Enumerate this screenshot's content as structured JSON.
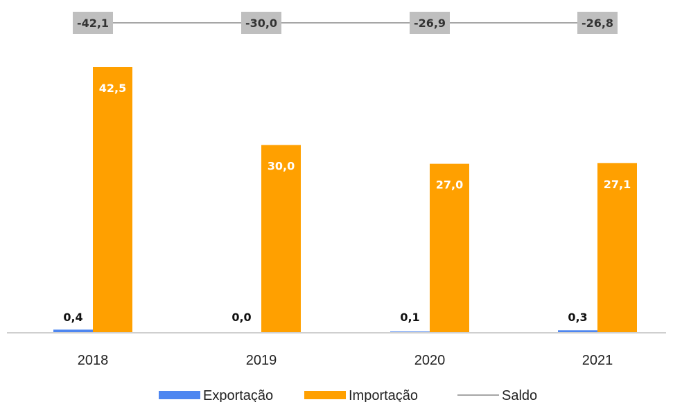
{
  "chart_data": {
    "type": "bar",
    "categories": [
      "2018",
      "2019",
      "2020",
      "2021"
    ],
    "series": [
      {
        "name": "Exportação",
        "type": "bar",
        "values": [
          0.4,
          0.0,
          0.1,
          0.3
        ],
        "labels": [
          "0,4",
          "0,0",
          "0,1",
          "0,3"
        ],
        "color": "#4e86f0"
      },
      {
        "name": "Importação",
        "type": "bar",
        "values": [
          42.5,
          30.0,
          27.0,
          27.1
        ],
        "labels": [
          "42,5",
          "30,0",
          "27,0",
          "27,1"
        ],
        "color": "#ffa000"
      },
      {
        "name": "Saldo",
        "type": "line",
        "values": [
          -42.1,
          -30.0,
          -26.9,
          -26.8
        ],
        "labels": [
          "-42,1",
          "-30,0",
          "-26,9",
          "-26,8"
        ],
        "color": "#a6a6a6"
      }
    ],
    "legend_position": "bottom",
    "grid": false
  }
}
